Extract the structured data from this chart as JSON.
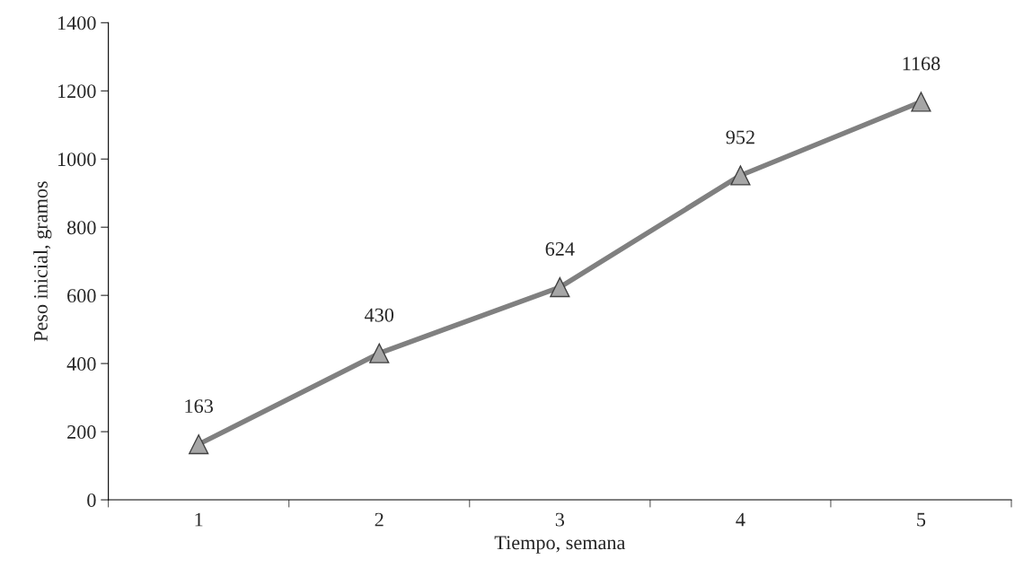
{
  "chart_data": {
    "type": "line",
    "xlabel": "Tiempo, semana",
    "ylabel": "Peso inicial, gramos",
    "categories": [
      "1",
      "2",
      "3",
      "4",
      "5"
    ],
    "values": [
      163,
      430,
      624,
      952,
      1168
    ],
    "color": "#808080",
    "ylim": [
      0,
      1400
    ],
    "yticks": [
      0,
      200,
      400,
      600,
      800,
      1000,
      1200,
      1400
    ],
    "data_labels": true,
    "marker": "triangle",
    "line_style": "solid",
    "grid": false,
    "legend": false
  }
}
